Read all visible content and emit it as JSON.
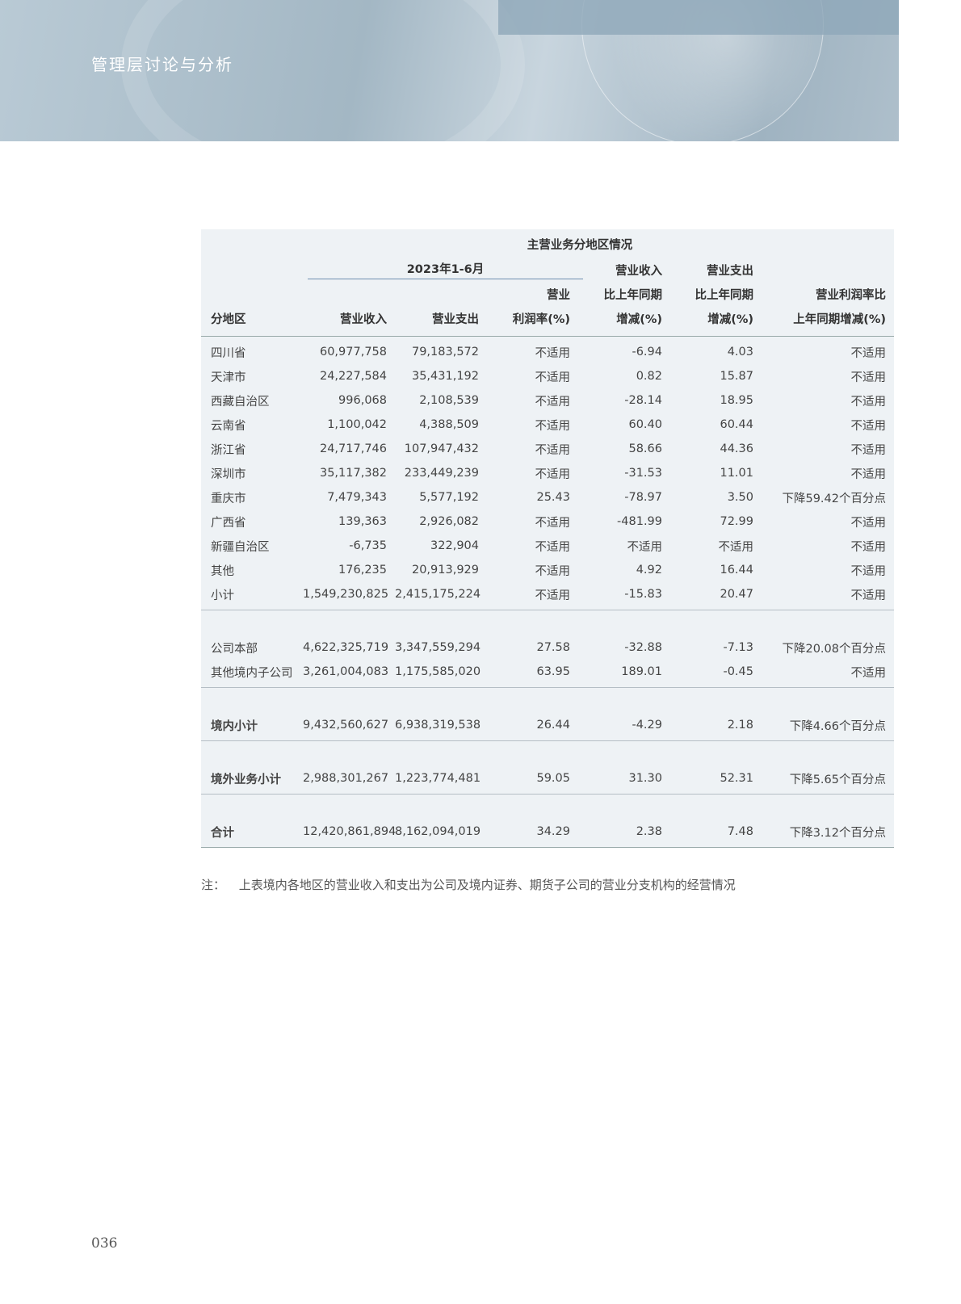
{
  "header": {
    "section_title": "管理层讨论与分析"
  },
  "table": {
    "caption": "主营业务分地区情况",
    "period": "2023年1-6月",
    "columns": {
      "region": "分地区",
      "revenue": "营业收入",
      "expense": "营业支出",
      "margin_1": "营业",
      "margin_2": "利润率(%)",
      "rev_chg_1": "营业收入",
      "rev_chg_2": "比上年同期",
      "rev_chg_3": "增减(%)",
      "exp_chg_1": "营业支出",
      "exp_chg_2": "比上年同期",
      "exp_chg_3": "增减(%)",
      "margin_chg_1": "营业利润率比",
      "margin_chg_2": "上年同期增减(%)"
    },
    "rows": [
      [
        "四川省",
        "60,977,758",
        "79,183,572",
        "不适用",
        "-6.94",
        "4.03",
        "不适用"
      ],
      [
        "天津市",
        "24,227,584",
        "35,431,192",
        "不适用",
        "0.82",
        "15.87",
        "不适用"
      ],
      [
        "西藏自治区",
        "996,068",
        "2,108,539",
        "不适用",
        "-28.14",
        "18.95",
        "不适用"
      ],
      [
        "云南省",
        "1,100,042",
        "4,388,509",
        "不适用",
        "60.40",
        "60.44",
        "不适用"
      ],
      [
        "浙江省",
        "24,717,746",
        "107,947,432",
        "不适用",
        "58.66",
        "44.36",
        "不适用"
      ],
      [
        "深圳市",
        "35,117,382",
        "233,449,239",
        "不适用",
        "-31.53",
        "11.01",
        "不适用"
      ],
      [
        "重庆市",
        "7,479,343",
        "5,577,192",
        "25.43",
        "-78.97",
        "3.50",
        "下降59.42个百分点"
      ],
      [
        "广西省",
        "139,363",
        "2,926,082",
        "不适用",
        "-481.99",
        "72.99",
        "不适用"
      ],
      [
        "新疆自治区",
        "-6,735",
        "322,904",
        "不适用",
        "不适用",
        "不适用",
        "不适用"
      ],
      [
        "其他",
        "176,235",
        "20,913,929",
        "不适用",
        "4.92",
        "16.44",
        "不适用"
      ],
      [
        "小计",
        "1,549,230,825",
        "2,415,175,224",
        "不适用",
        "-15.83",
        "20.47",
        "不适用"
      ]
    ],
    "group2": [
      [
        "公司本部",
        "4,622,325,719",
        "3,347,559,294",
        "27.58",
        "-32.88",
        "-7.13",
        "下降20.08个百分点"
      ],
      [
        "其他境内子公司",
        "3,261,004,083",
        "1,175,585,020",
        "63.95",
        "189.01",
        "-0.45",
        "不适用"
      ]
    ],
    "domestic": [
      "境内小计",
      "9,432,560,627",
      "6,938,319,538",
      "26.44",
      "-4.29",
      "2.18",
      "下降4.66个百分点"
    ],
    "overseas": [
      "境外业务小计",
      "2,988,301,267",
      "1,223,774,481",
      "59.05",
      "31.30",
      "52.31",
      "下降5.65个百分点"
    ],
    "total": [
      "合计",
      "12,420,861,894",
      "8,162,094,019",
      "34.29",
      "2.38",
      "7.48",
      "下降3.12个百分点"
    ]
  },
  "note": {
    "label": "注：",
    "text": "上表境内各地区的营业收入和支出为公司及境内证券、期货子公司的营业分支机构的经营情况"
  },
  "page_number": "036"
}
